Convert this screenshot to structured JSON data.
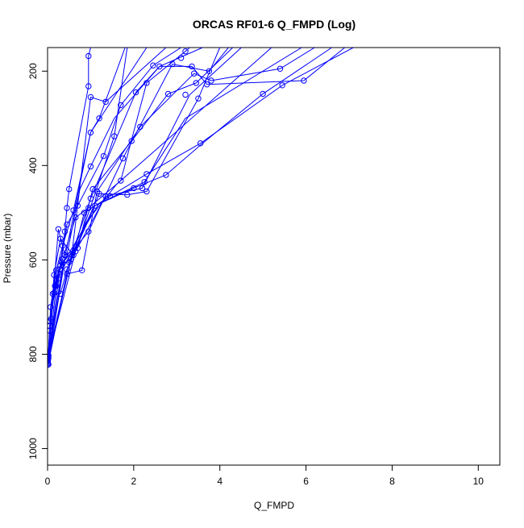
{
  "chart_data": {
    "type": "scatter",
    "title": "ORCAS RF01-6 Q_FMPD (Log)",
    "xlabel": "Q_FMPD",
    "ylabel": "Pressure (mbar)",
    "xlim": [
      0,
      10.5
    ],
    "ylim": [
      1035,
      150
    ],
    "y_reversed": true,
    "x_ticks": [
      0,
      2,
      4,
      6,
      8,
      10
    ],
    "y_ticks": [
      200,
      400,
      600,
      800,
      1000
    ],
    "grid": false,
    "legend": "none",
    "color": "#0000ff",
    "series": [
      {
        "points": [
          [
            0.01,
            815
          ],
          [
            0.01,
            812
          ],
          [
            0.02,
            808
          ],
          [
            0.02,
            805
          ],
          [
            0.02,
            802
          ],
          [
            0.01,
            818
          ],
          [
            0.01,
            820
          ],
          [
            0.02,
            822
          ],
          [
            0.05,
            750
          ],
          [
            0.05,
            740
          ],
          [
            0.06,
            730
          ],
          [
            0.08,
            725
          ],
          [
            0.07,
            700
          ],
          [
            0.12,
            672
          ],
          [
            0.15,
            670
          ],
          [
            0.17,
            655
          ],
          [
            0.15,
            632
          ],
          [
            0.2,
            622
          ],
          [
            0.2,
            655
          ],
          [
            0.25,
            640
          ],
          [
            0.25,
            628
          ],
          [
            0.28,
            620
          ],
          [
            0.3,
            672
          ],
          [
            0.3,
            612
          ],
          [
            0.33,
            605
          ],
          [
            0.35,
            598
          ],
          [
            0.4,
            590
          ],
          [
            0.45,
            620
          ],
          [
            0.45,
            630
          ],
          [
            0.5,
            605
          ],
          [
            0.55,
            598
          ],
          [
            0.6,
            590
          ],
          [
            0.65,
            582
          ],
          [
            0.7,
            575
          ],
          [
            0.8,
            622
          ],
          [
            0.25,
            535
          ],
          [
            0.3,
            555
          ],
          [
            0.35,
            570
          ],
          [
            0.4,
            540
          ],
          [
            0.45,
            525
          ],
          [
            0.45,
            490
          ],
          [
            0.5,
            450
          ],
          [
            0.6,
            495
          ],
          [
            0.65,
            510
          ],
          [
            0.7,
            485
          ],
          [
            0.85,
            500
          ],
          [
            0.95,
            490
          ],
          [
            0.95,
            540
          ],
          [
            1.0,
            470
          ],
          [
            1.0,
            402
          ],
          [
            1.0,
            330
          ],
          [
            1.0,
            255
          ],
          [
            0.95,
            232
          ],
          [
            0.95,
            168
          ],
          [
            1.05,
            450
          ],
          [
            1.1,
            485
          ],
          [
            1.15,
            455
          ],
          [
            1.2,
            460
          ],
          [
            1.2,
            300
          ],
          [
            1.3,
            380
          ],
          [
            1.35,
            465
          ],
          [
            1.35,
            265
          ],
          [
            1.45,
            465
          ],
          [
            1.55,
            338
          ],
          [
            1.7,
            432
          ],
          [
            1.7,
            272
          ],
          [
            1.75,
            385
          ],
          [
            1.85,
            462
          ],
          [
            1.95,
            348
          ],
          [
            2.0,
            448
          ],
          [
            2.05,
            245
          ],
          [
            2.15,
            318
          ],
          [
            2.2,
            448
          ],
          [
            2.25,
            435
          ],
          [
            2.3,
            455
          ],
          [
            2.3,
            418
          ],
          [
            2.3,
            225
          ],
          [
            2.45,
            188
          ],
          [
            2.6,
            190
          ],
          [
            2.75,
            420
          ],
          [
            2.8,
            248
          ],
          [
            2.9,
            185
          ],
          [
            3.1,
            172
          ],
          [
            3.2,
            158
          ],
          [
            3.2,
            250
          ],
          [
            3.35,
            190
          ],
          [
            3.4,
            205
          ],
          [
            3.45,
            225
          ],
          [
            3.5,
            258
          ],
          [
            3.55,
            353
          ],
          [
            3.7,
            228
          ],
          [
            3.75,
            200
          ],
          [
            3.8,
            220
          ],
          [
            5.0,
            248
          ],
          [
            5.4,
            195
          ],
          [
            5.45,
            230
          ],
          [
            5.95,
            220
          ]
        ],
        "paths": [
          [
            [
              0.01,
              820
            ],
            [
              0.05,
              750
            ],
            [
              0.12,
              672
            ],
            [
              0.25,
              628
            ],
            [
              0.45,
              590
            ],
            [
              0.75,
              450
            ],
            [
              1.0,
              402
            ],
            [
              1.55,
              300
            ],
            [
              2.6,
              190
            ],
            [
              3.6,
              150
            ]
          ],
          [
            [
              0.01,
              818
            ],
            [
              0.07,
              700
            ],
            [
              0.2,
              622
            ],
            [
              0.35,
              570
            ],
            [
              0.6,
              495
            ],
            [
              1.0,
              330
            ],
            [
              1.2,
              300
            ],
            [
              1.8,
              150
            ]
          ],
          [
            [
              0.01,
              815
            ],
            [
              0.06,
              730
            ],
            [
              0.15,
              655
            ],
            [
              0.3,
              612
            ],
            [
              0.55,
              598
            ],
            [
              1.1,
              485
            ],
            [
              2.0,
              448
            ],
            [
              2.75,
              420
            ],
            [
              3.6,
              353
            ],
            [
              5.0,
              248
            ],
            [
              6.6,
              150
            ]
          ],
          [
            [
              0.02,
              812
            ],
            [
              0.08,
              725
            ],
            [
              0.17,
              655
            ],
            [
              0.33,
              605
            ],
            [
              0.5,
              605
            ],
            [
              1.2,
              460
            ],
            [
              1.85,
              462
            ],
            [
              2.3,
              455
            ],
            [
              3.5,
              258
            ],
            [
              4.0,
              150
            ]
          ],
          [
            [
              0.02,
              808
            ],
            [
              0.1,
              700
            ],
            [
              0.25,
              640
            ],
            [
              0.4,
              540
            ],
            [
              0.45,
              490
            ],
            [
              0.5,
              450
            ],
            [
              0.95,
              232
            ],
            [
              0.95,
              168
            ],
            [
              1.0,
              150
            ]
          ],
          [
            [
              0.02,
              805
            ],
            [
              0.12,
              672
            ],
            [
              0.3,
              672
            ],
            [
              0.45,
              620
            ],
            [
              0.65,
              582
            ],
            [
              1.35,
              465
            ],
            [
              2.2,
              448
            ],
            [
              3.3,
              250
            ],
            [
              4.5,
              150
            ]
          ],
          [
            [
              0.01,
              802
            ],
            [
              0.15,
              670
            ],
            [
              0.28,
              620
            ],
            [
              0.45,
              525
            ],
            [
              0.7,
              485
            ],
            [
              1.3,
              380
            ],
            [
              1.7,
              272
            ],
            [
              2.45,
              188
            ],
            [
              3.1,
              150
            ]
          ],
          [
            [
              0.02,
              822
            ],
            [
              0.15,
              632
            ],
            [
              0.3,
              555
            ],
            [
              0.6,
              590
            ],
            [
              0.85,
              500
            ],
            [
              1.45,
              465
            ],
            [
              2.3,
              418
            ],
            [
              3.55,
              353
            ],
            [
              5.45,
              230
            ],
            [
              7.1,
              150
            ]
          ],
          [
            [
              0.02,
              815
            ],
            [
              0.2,
              655
            ],
            [
              0.35,
              598
            ],
            [
              0.65,
              510
            ],
            [
              0.95,
              490
            ],
            [
              1.7,
              432
            ],
            [
              2.3,
              225
            ],
            [
              3.2,
              158
            ],
            [
              3.3,
              150
            ]
          ],
          [
            [
              0.01,
              810
            ],
            [
              0.25,
              535
            ],
            [
              0.4,
              590
            ],
            [
              0.7,
              575
            ],
            [
              1.05,
              450
            ],
            [
              1.95,
              348
            ],
            [
              2.8,
              248
            ],
            [
              3.45,
              225
            ],
            [
              4.3,
              150
            ]
          ],
          [
            [
              0.02,
              806
            ],
            [
              0.45,
              630
            ],
            [
              0.8,
              622
            ],
            [
              1.15,
              455
            ],
            [
              2.15,
              318
            ],
            [
              3.4,
              205
            ],
            [
              3.8,
              220
            ],
            [
              5.4,
              195
            ],
            [
              6.2,
              150
            ]
          ],
          [
            [
              0.01,
              820
            ],
            [
              0.3,
              612
            ],
            [
              0.95,
              540
            ],
            [
              1.75,
              385
            ],
            [
              2.9,
              185
            ],
            [
              3.75,
              200
            ],
            [
              4.2,
              150
            ]
          ],
          [
            [
              0.02,
              818
            ],
            [
              0.5,
              605
            ],
            [
              1.0,
              470
            ],
            [
              2.05,
              245
            ],
            [
              2.6,
              190
            ],
            [
              3.35,
              190
            ],
            [
              3.7,
              228
            ],
            [
              5.95,
              220
            ],
            [
              6.9,
              150
            ]
          ],
          [
            [
              0.01,
              812
            ],
            [
              0.55,
              598
            ],
            [
              1.0,
              255
            ],
            [
              1.35,
              265
            ],
            [
              2.75,
              150
            ]
          ],
          [
            [
              0.02,
              803
            ],
            [
              0.65,
              582
            ],
            [
              1.55,
              338
            ],
            [
              1.85,
              150
            ]
          ],
          [
            [
              0.01,
              814
            ],
            [
              0.3,
              640
            ],
            [
              1.0,
              330
            ],
            [
              2.3,
              150
            ]
          ],
          [
            [
              0.02,
              816
            ],
            [
              0.4,
              600
            ],
            [
              1.2,
              480
            ],
            [
              2.25,
              435
            ],
            [
              3.2,
              300
            ],
            [
              5.9,
              150
            ]
          ],
          [
            [
              0.01,
              811
            ],
            [
              0.35,
              620
            ],
            [
              0.9,
              520
            ],
            [
              1.6,
              440
            ],
            [
              2.6,
              360
            ],
            [
              5.2,
              150
            ]
          ]
        ]
      }
    ]
  }
}
